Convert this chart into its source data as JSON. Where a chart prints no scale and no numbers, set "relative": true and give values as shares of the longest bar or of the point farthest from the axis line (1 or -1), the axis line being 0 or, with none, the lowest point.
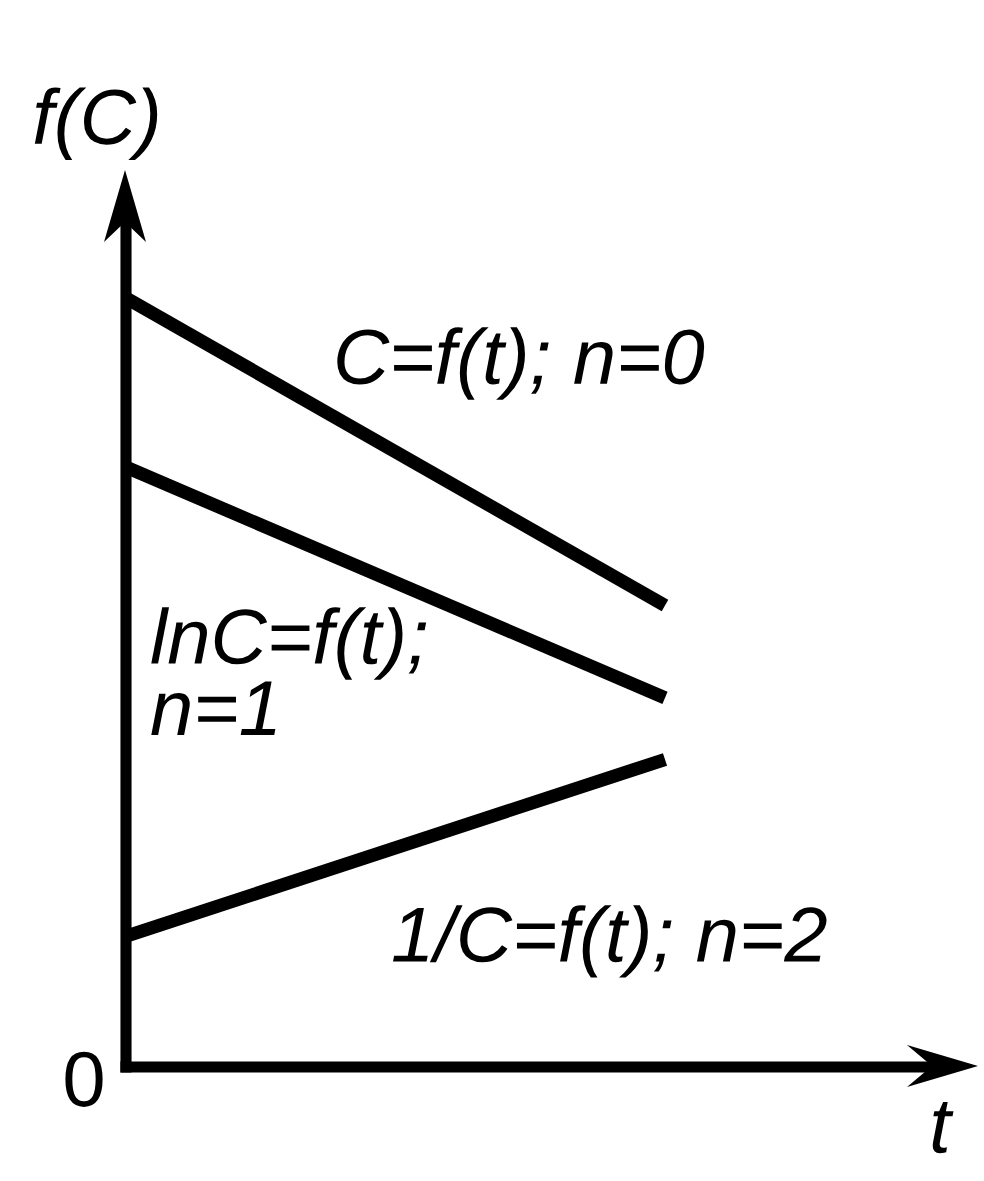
{
  "chart_data": {
    "type": "line",
    "xlabel": "t",
    "ylabel": "f(C)",
    "relative": true,
    "categories": [
      null,
      null
    ],
    "annotations": [
      "0"
    ],
    "series": [
      {
        "name": "C=f(t); n=0",
        "color": "#000000",
        "values": [
          1,
          0.6
        ]
      },
      {
        "name": "lnC=f(t);\nn=1",
        "color": "#000000",
        "values": [
          0.78,
          0.48
        ]
      },
      {
        "name": "1/C=f(t); n=2",
        "color": "#000000",
        "values": [
          0.17,
          0.4
        ]
      }
    ]
  }
}
